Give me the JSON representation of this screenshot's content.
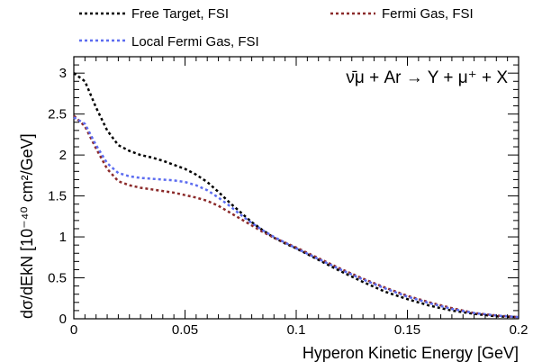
{
  "chart_data": {
    "type": "line",
    "title": "",
    "annotation": "ν̄μ + Ar → Y + μ⁺ + X",
    "xlabel": "Hyperon Kinetic Energy  [GeV]",
    "ylabel": "dσ/dEkN  [10⁻⁴⁰ cm²/GeV]",
    "xlim": [
      0,
      0.2
    ],
    "ylim": [
      0,
      3.2
    ],
    "grid": false,
    "legend_position": "top",
    "x_tick_labels": [
      "0",
      "0.05",
      "0.1",
      "0.15",
      "0.2"
    ],
    "y_tick_labels": [
      "0",
      "0.5",
      "1",
      "1.5",
      "2",
      "2.5",
      "3"
    ],
    "series": [
      {
        "name": "Free Target, FSI",
        "color": "#000000",
        "x": [
          0,
          0.005,
          0.01,
          0.015,
          0.02,
          0.025,
          0.03,
          0.035,
          0.04,
          0.045,
          0.05,
          0.055,
          0.06,
          0.065,
          0.07,
          0.075,
          0.08,
          0.085,
          0.09,
          0.095,
          0.1,
          0.11,
          0.12,
          0.13,
          0.14,
          0.15,
          0.16,
          0.17,
          0.18,
          0.19,
          0.2
        ],
        "y": [
          3.0,
          2.9,
          2.58,
          2.3,
          2.12,
          2.05,
          2.0,
          1.97,
          1.93,
          1.88,
          1.83,
          1.76,
          1.67,
          1.55,
          1.42,
          1.3,
          1.18,
          1.08,
          0.99,
          0.92,
          0.86,
          0.72,
          0.58,
          0.45,
          0.33,
          0.24,
          0.16,
          0.1,
          0.06,
          0.03,
          0.02
        ]
      },
      {
        "name": "Fermi Gas, FSI",
        "color": "#8b2a2a",
        "x": [
          0,
          0.005,
          0.01,
          0.015,
          0.02,
          0.025,
          0.03,
          0.035,
          0.04,
          0.045,
          0.05,
          0.055,
          0.06,
          0.065,
          0.07,
          0.075,
          0.08,
          0.085,
          0.09,
          0.095,
          0.1,
          0.11,
          0.12,
          0.13,
          0.14,
          0.15,
          0.16,
          0.17,
          0.18,
          0.19,
          0.2
        ],
        "y": [
          2.48,
          2.35,
          2.08,
          1.83,
          1.68,
          1.63,
          1.6,
          1.58,
          1.56,
          1.54,
          1.51,
          1.48,
          1.44,
          1.38,
          1.3,
          1.22,
          1.14,
          1.06,
          0.99,
          0.93,
          0.87,
          0.74,
          0.61,
          0.49,
          0.38,
          0.28,
          0.2,
          0.13,
          0.07,
          0.04,
          0.02
        ]
      },
      {
        "name": "Local Fermi Gas, FSI",
        "color": "#5c6cf0",
        "x": [
          0,
          0.005,
          0.01,
          0.015,
          0.02,
          0.025,
          0.03,
          0.035,
          0.04,
          0.045,
          0.05,
          0.055,
          0.06,
          0.065,
          0.07,
          0.075,
          0.08,
          0.085,
          0.09,
          0.095,
          0.1,
          0.11,
          0.12,
          0.13,
          0.14,
          0.15,
          0.16,
          0.17,
          0.18,
          0.19,
          0.2
        ],
        "y": [
          2.46,
          2.38,
          2.12,
          1.9,
          1.78,
          1.74,
          1.72,
          1.71,
          1.7,
          1.69,
          1.67,
          1.63,
          1.57,
          1.48,
          1.38,
          1.27,
          1.17,
          1.08,
          1.0,
          0.93,
          0.86,
          0.73,
          0.6,
          0.48,
          0.37,
          0.27,
          0.19,
          0.12,
          0.07,
          0.04,
          0.02
        ]
      }
    ]
  }
}
